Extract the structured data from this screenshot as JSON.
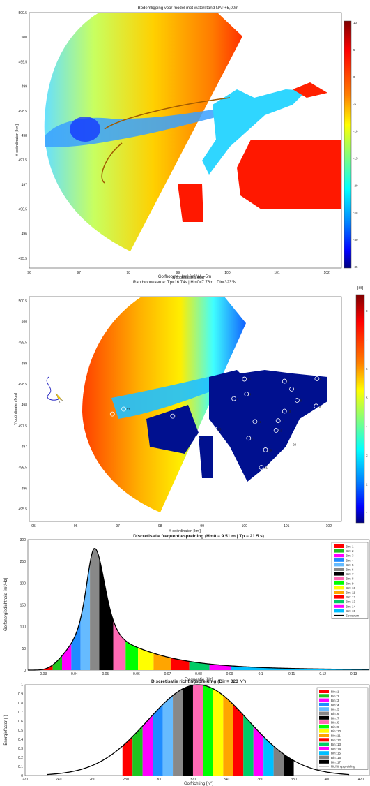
{
  "colors": {
    "jet": [
      "#00007f",
      "#0000ff",
      "#007fff",
      "#00ffff",
      "#7fff7f",
      "#ffff00",
      "#ff7f00",
      "#ff0000",
      "#7f0000"
    ],
    "bins": [
      "#ff0000",
      "#1fc41f",
      "#ff00ff",
      "#1f8cff",
      "#66bbff",
      "#888888",
      "#000000",
      "#ff69b4",
      "#00ff00",
      "#ffff00",
      "#ffa500",
      "#ff0000",
      "#00cc66",
      "#ff00ff",
      "#00bfff",
      "#808080",
      "#000000"
    ]
  },
  "chart_data": [
    {
      "type": "heatmap",
      "title": "Bodemligging voor model met waterstand NAP+5,00m",
      "xlabel": "X coördinaten [km]",
      "ylabel": "Y coördinaten [km]",
      "xlim": [
        96,
        102.3
      ],
      "ylim": [
        495.3,
        500.5
      ],
      "x_ticks": [
        "96",
        "97",
        "98",
        "99",
        "100",
        "101",
        "102"
      ],
      "y_ticks": [
        "495.5",
        "496",
        "496.5",
        "497",
        "497.5",
        "498",
        "498.5",
        "499",
        "499.5",
        "500",
        "500.5"
      ],
      "colorbar": {
        "min": -35,
        "max": 10,
        "ticks": [
          "10",
          "5",
          "0",
          "-5",
          "-10",
          "-15",
          "-20",
          "-25",
          "-30",
          "-35"
        ]
      }
    },
    {
      "type": "heatmap",
      "title": "Golfhoogte Hm0 [m]      WL=5m",
      "subtitle": "Randvoorwaarde: Tp=16.74s | Hm0=7.76m | Dir=323°N",
      "xlabel": "X coördinaten [km]",
      "ylabel": "Y coördinaten [km]",
      "xlim": [
        94.9,
        102.3
      ],
      "ylim": [
        495.2,
        500.6
      ],
      "x_ticks": [
        "95",
        "96",
        "97",
        "98",
        "99",
        "100",
        "101",
        "102"
      ],
      "y_ticks": [
        "495.5",
        "496",
        "496.5",
        "497",
        "497.5",
        "498",
        "498.5",
        "499",
        "499.5",
        "500",
        "500.5"
      ],
      "colorbar_label": "[m]",
      "colorbar_ticks": [
        "8",
        "7",
        "6",
        "5",
        "4",
        "3",
        "2",
        "1"
      ],
      "points": [
        {
          "label": "1",
          "x": 96.87,
          "y": 497.78
        },
        {
          "label": "2",
          "x": 98.3,
          "y": 497.73
        },
        {
          "label": "3",
          "x": 99.75,
          "y": 498.15
        },
        {
          "label": "4",
          "x": 100.05,
          "y": 498.26
        },
        {
          "label": "5",
          "x": 100.95,
          "y": 498.57
        },
        {
          "label": "6",
          "x": 101.72,
          "y": 498.63
        },
        {
          "label": "7",
          "x": 101.12,
          "y": 498.38
        },
        {
          "label": "8",
          "x": 101.25,
          "y": 498.11
        },
        {
          "label": "9",
          "x": 101.7,
          "y": 497.97
        },
        {
          "label": "10",
          "x": 100.75,
          "y": 497.39
        },
        {
          "label": "11",
          "x": 100.1,
          "y": 497.2
        },
        {
          "label": "12",
          "x": 100.25,
          "y": 497.6
        },
        {
          "label": "13",
          "x": 100.8,
          "y": 497.62
        },
        {
          "label": "14",
          "x": 98.88,
          "y": 497.2
        },
        {
          "label": "15",
          "x": 99.3,
          "y": 497.42
        },
        {
          "label": "16",
          "x": 100.0,
          "y": 498.62
        },
        {
          "label": "17",
          "x": 97.14,
          "y": 497.9
        },
        {
          "label": "18",
          "x": 100.95,
          "y": 497.85
        },
        {
          "label": "19",
          "x": 100.5,
          "y": 496.92
        },
        {
          "label": "20",
          "x": 101.08,
          "y": 497.05
        },
        {
          "label": "21",
          "x": 100.4,
          "y": 496.5
        }
      ]
    },
    {
      "type": "bar",
      "title": "Discretisatie frequentiespreiding (Hm0 = 9.51 m | Tp = 21.5 s)",
      "xlabel": "Frequentie [Hz]",
      "ylabel": "Golfenergiedichtheid [m²/Hz]",
      "xlim": [
        0.025,
        0.135
      ],
      "ylim": [
        0,
        300
      ],
      "x_ticks": [
        "0.03",
        "0.04",
        "0.05",
        "0.06",
        "0.07",
        "0.08",
        "0.09",
        "0.1",
        "0.11",
        "0.12",
        "0.13"
      ],
      "y_ticks": [
        "0",
        "50",
        "100",
        "150",
        "200",
        "250",
        "300"
      ],
      "peak": {
        "x": 0.0465,
        "y": 280
      },
      "bin_edges": [
        0.03,
        0.033,
        0.036,
        0.039,
        0.042,
        0.045,
        0.048,
        0.0525,
        0.0565,
        0.0605,
        0.0655,
        0.071,
        0.077,
        0.0835,
        0.0905,
        0.135
      ],
      "legend_position": "top-right",
      "legend": [
        "Bin: 1",
        "Bin: 2",
        "Bin: 3",
        "Bin: 4",
        "Bin: 5",
        "Bin: 6",
        "Bin: 7",
        "Bin: 8",
        "Bin: 9",
        "Bin: 10",
        "Bin: 11",
        "Bin: 12",
        "Bin: 13",
        "Bin: 14",
        "Bin: 15",
        "Spectrum"
      ]
    },
    {
      "type": "bar",
      "title": "Discretisatie richtingspreiding (Dir = 323 N°)",
      "xlabel": "Golfrichting [N°]",
      "ylabel": "Energiefactor (-)",
      "xlim": [
        220,
        425
      ],
      "ylim": [
        0,
        1
      ],
      "x_ticks": [
        "220",
        "240",
        "260",
        "280",
        "300",
        "320",
        "340",
        "360",
        "380",
        "400",
        "420"
      ],
      "y_ticks": [
        "0",
        "0.1",
        "0.2",
        "0.3",
        "0.4",
        "0.5",
        "0.6",
        "0.7",
        "0.8",
        "0.9",
        "1"
      ],
      "center": 323,
      "sigma": 30,
      "bin_edges": [
        278,
        284,
        290,
        296,
        302,
        308,
        314,
        320,
        326,
        332,
        338,
        344,
        350,
        356,
        362,
        368,
        374,
        380
      ],
      "legend_position": "top-right",
      "legend": [
        "Bin: 1",
        "Bin: 2",
        "Bin: 3",
        "Bin: 4",
        "Bin: 5",
        "Bin: 6",
        "Bin: 7",
        "Bin: 8",
        "Bin: 9",
        "Bin: 10",
        "Bin: 11",
        "Bin: 12",
        "Bin: 13",
        "Bin: 14",
        "Bin: 15",
        "Bin: 16",
        "Bin: 17",
        "Richtingspreiding"
      ]
    }
  ]
}
